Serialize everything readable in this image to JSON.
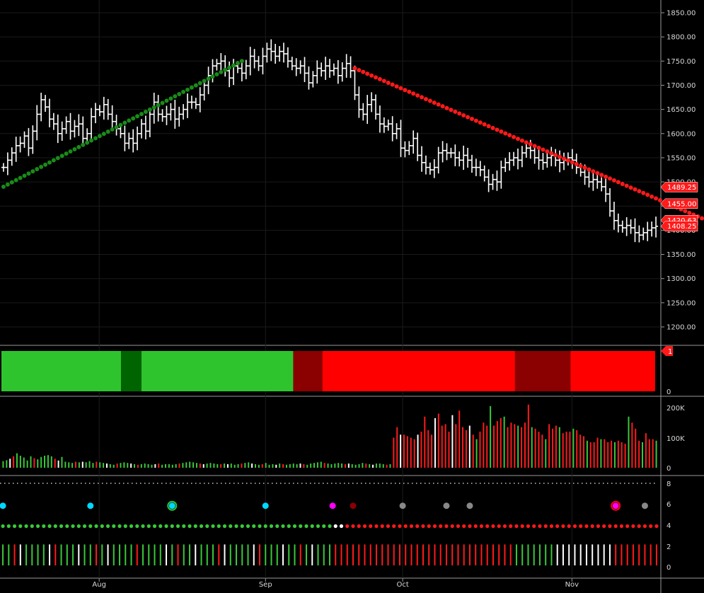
{
  "chart_data": [
    {
      "type": "line",
      "title": "",
      "price_axis_labels": [
        "1850.00",
        "1800.00",
        "1750.00",
        "1700.00",
        "1650.00",
        "1600.00",
        "1550.00",
        "1500.00",
        "1450.00",
        "1400.00",
        "1350.00",
        "1300.00",
        "1250.00",
        "1200.00"
      ],
      "month_labels": [
        {
          "label": "Aug",
          "bar": 33
        },
        {
          "label": "Sep",
          "bar": 90
        },
        {
          "label": "Oct",
          "bar": 137
        },
        {
          "label": "Nov",
          "bar": 195
        }
      ],
      "last_value_labels": [
        {
          "text": "1489.25",
          "value": 1489.25
        },
        {
          "text": "1455.00",
          "value": 1455.0
        },
        {
          "text": "1420.63",
          "value": 1420.63
        },
        {
          "text": "1408.25",
          "value": 1408.25
        }
      ],
      "closes": [
        1530,
        1545,
        1560,
        1575,
        1580,
        1595,
        1570,
        1605,
        1640,
        1670,
        1655,
        1630,
        1620,
        1600,
        1610,
        1625,
        1605,
        1615,
        1620,
        1590,
        1600,
        1635,
        1650,
        1645,
        1660,
        1640,
        1625,
        1610,
        1600,
        1580,
        1590,
        1580,
        1600,
        1620,
        1605,
        1640,
        1665,
        1640,
        1635,
        1640,
        1650,
        1630,
        1640,
        1650,
        1665,
        1665,
        1660,
        1680,
        1700,
        1720,
        1740,
        1745,
        1750,
        1730,
        1715,
        1740,
        1735,
        1725,
        1740,
        1760,
        1750,
        1740,
        1760,
        1775,
        1770,
        1760,
        1770,
        1765,
        1750,
        1740,
        1735,
        1740,
        1725,
        1705,
        1720,
        1735,
        1730,
        1740,
        1730,
        1735,
        1720,
        1735,
        1745,
        1730,
        1680,
        1650,
        1640,
        1660,
        1670,
        1640,
        1620,
        1615,
        1620,
        1600,
        1610,
        1570,
        1565,
        1575,
        1590,
        1555,
        1540,
        1530,
        1525,
        1530,
        1560,
        1565,
        1560,
        1560,
        1550,
        1545,
        1555,
        1545,
        1530,
        1530,
        1525,
        1510,
        1495,
        1505,
        1500,
        1530,
        1540,
        1545,
        1550,
        1545,
        1560,
        1570,
        1565,
        1550,
        1545,
        1540,
        1550,
        1555,
        1545,
        1540,
        1545,
        1550,
        1545,
        1530,
        1520,
        1510,
        1500,
        1505,
        1500,
        1490,
        1475,
        1440,
        1420,
        1410,
        1405,
        1410,
        1405,
        1395,
        1390,
        1395,
        1400,
        1405,
        1408.25
      ],
      "psar_dots": [
        {
          "from": 0,
          "to": 57,
          "color": "#1a8a1a",
          "start": 1490,
          "end": 1750
        },
        {
          "from": 84,
          "to": 168,
          "color": "#ff1a1a",
          "start": 1735,
          "end": 1421
        }
      ],
      "summary_band": {
        "ymin": 0,
        "ymax": 1,
        "segments": [
          {
            "from": 0,
            "to": 41,
            "color": "#2ec42e"
          },
          {
            "from": 41,
            "to": 48,
            "color": "#006400"
          },
          {
            "from": 48,
            "to": 100,
            "color": "#2ec42e"
          },
          {
            "from": 100,
            "to": 110,
            "color": "#8b0000"
          },
          {
            "from": 110,
            "to": 176,
            "color": "#ff0000"
          },
          {
            "from": 176,
            "to": 195,
            "color": "#8b0000"
          },
          {
            "from": 195,
            "to": 224,
            "color": "#ff0000"
          }
        ],
        "ticks": [
          "0"
        ],
        "badge": "1"
      },
      "volume": {
        "ticks": [
          "200K",
          "100K",
          "0"
        ],
        "values": [
          22,
          25,
          30,
          38,
          48,
          40,
          34,
          24,
          38,
          32,
          28,
          36,
          40,
          42,
          38,
          30,
          24,
          36,
          20,
          18,
          16,
          20,
          18,
          20,
          18,
          22,
          16,
          20,
          18,
          16,
          14,
          12,
          10,
          14,
          16,
          18,
          16,
          14,
          12,
          10,
          12,
          14,
          12,
          10,
          12,
          14,
          10,
          12,
          12,
          10,
          12,
          14,
          16,
          18,
          20,
          18,
          16,
          14,
          12,
          14,
          16,
          14,
          12,
          12,
          14,
          12,
          14,
          10,
          12,
          14,
          16,
          18,
          14,
          12,
          10,
          12,
          16,
          10,
          12,
          10,
          14,
          12,
          10,
          12,
          14,
          12,
          14,
          12,
          10,
          14,
          16,
          18,
          20,
          16,
          14,
          12,
          14,
          16,
          14,
          12,
          14,
          12,
          10,
          12,
          16,
          14,
          12,
          10,
          14,
          14,
          12,
          10,
          12,
          100,
          135,
          110,
          110,
          105,
          100,
          95,
          110,
          120,
          170,
          125,
          110,
          165,
          180,
          140,
          145,
          120,
          175,
          145,
          190,
          135,
          125,
          140,
          110,
          95,
          120,
          150,
          140,
          205,
          140,
          155,
          165,
          170,
          135,
          150,
          145,
          140,
          135,
          150,
          210,
          135,
          130,
          120,
          110,
          95,
          145,
          130,
          140,
          135,
          115,
          120,
          120,
          130,
          125,
          110,
          105,
          90,
          85,
          85,
          100,
          95,
          95,
          85,
          90,
          85,
          90,
          85,
          80,
          170,
          150,
          130,
          90,
          85,
          115,
          95,
          95,
          90
        ],
        "colors": "mixed"
      },
      "dots_panel": {
        "ticks": [
          "8",
          "6",
          "4",
          "2",
          "0"
        ],
        "row4_split": [
          113,
          118
        ],
        "markers": [
          {
            "bar": 0,
            "color": "#00d8ff"
          },
          {
            "bar": 30,
            "color": "#00d8ff"
          },
          {
            "bar": 58,
            "color": "#00d8ff",
            "ring": true
          },
          {
            "bar": 90,
            "color": "#00d8ff"
          },
          {
            "bar": 113,
            "color": "#ff00ff"
          },
          {
            "bar": 120,
            "color": "#8b0000"
          },
          {
            "bar": 137,
            "color": "#888888"
          },
          {
            "bar": 152,
            "color": "#888888"
          },
          {
            "bar": 160,
            "color": "#888888"
          },
          {
            "bar": 210,
            "color": "#ff00ff",
            "ring": true
          },
          {
            "bar": 220,
            "color": "#888888"
          }
        ]
      }
    }
  ]
}
